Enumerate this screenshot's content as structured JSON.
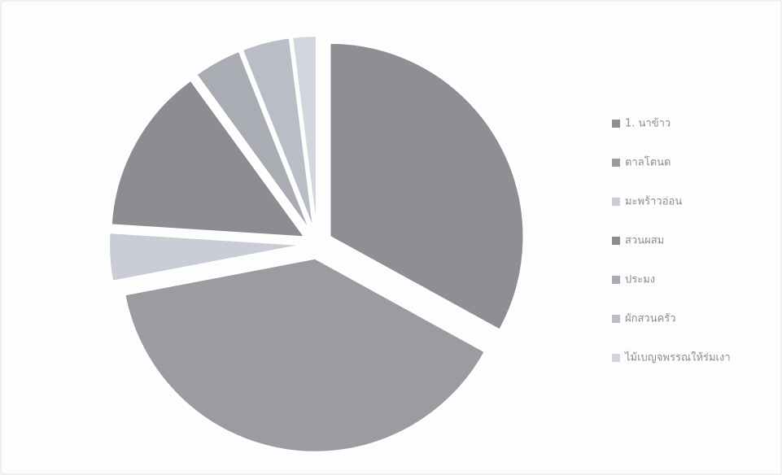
{
  "chart_data": {
    "type": "pie",
    "categories": [
      "1. นาข้าว",
      "ตาลโตนด",
      "มะพร้าวอ่อน",
      "สวนผสม",
      "ประมง",
      "ผักสวนครัว",
      "ไม้เบญจพรรณให้ร่มเงา"
    ],
    "values": [
      33,
      39,
      4,
      14,
      4,
      4,
      2
    ],
    "colors": [
      "#8e8f95",
      "#9b9ca2",
      "#c9cdd5",
      "#8b8d92",
      "#a9acb3",
      "#b9bdc6",
      "#d2d6de"
    ],
    "legend": "right"
  }
}
